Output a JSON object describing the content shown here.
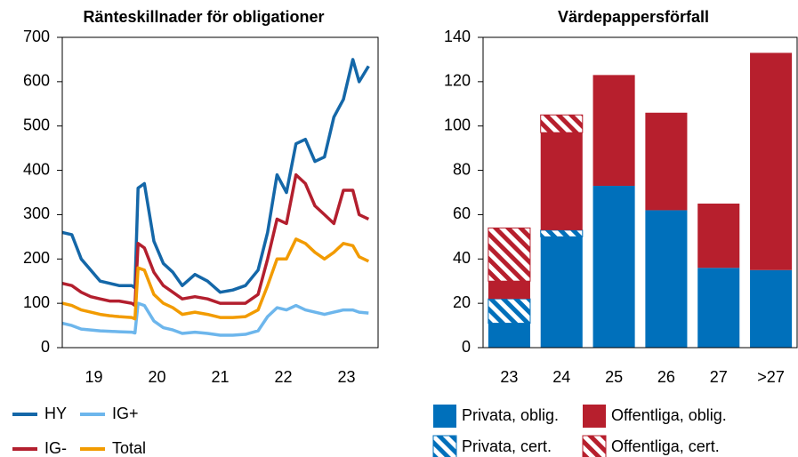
{
  "chart_data": [
    {
      "type": "line",
      "title": "Ränteskillnader för obligationer",
      "x": [
        2019.0,
        2019.15,
        2019.3,
        2019.45,
        2019.6,
        2019.75,
        2019.9,
        2020.1,
        2020.15,
        2020.2,
        2020.3,
        2020.45,
        2020.6,
        2020.75,
        2020.9,
        2021.1,
        2021.3,
        2021.5,
        2021.7,
        2021.9,
        2022.1,
        2022.25,
        2022.4,
        2022.55,
        2022.7,
        2022.85,
        2023.0,
        2023.15,
        2023.3,
        2023.45,
        2023.6,
        2023.7,
        2023.85
      ],
      "xlim": [
        2019,
        2024
      ],
      "xticks": [
        {
          "value": 2019.5,
          "label": "19"
        },
        {
          "value": 2020.5,
          "label": "20"
        },
        {
          "value": 2021.5,
          "label": "21"
        },
        {
          "value": 2022.5,
          "label": "22"
        },
        {
          "value": 2023.5,
          "label": "23"
        }
      ],
      "ylim": [
        0,
        700
      ],
      "yticks": [
        0,
        100,
        200,
        300,
        400,
        500,
        600,
        700
      ],
      "series": [
        {
          "name": "HY",
          "color": "#1467a8",
          "values": [
            260,
            255,
            200,
            175,
            150,
            145,
            140,
            140,
            135,
            360,
            370,
            240,
            190,
            170,
            140,
            165,
            150,
            125,
            130,
            140,
            175,
            260,
            390,
            350,
            460,
            470,
            420,
            430,
            520,
            560,
            650,
            600,
            635
          ]
        },
        {
          "name": "IG-",
          "color": "#b31f2e",
          "values": [
            145,
            140,
            125,
            115,
            110,
            105,
            105,
            100,
            95,
            235,
            225,
            170,
            140,
            125,
            110,
            115,
            110,
            100,
            100,
            100,
            120,
            200,
            290,
            280,
            390,
            370,
            320,
            300,
            280,
            355,
            355,
            300,
            290
          ]
        },
        {
          "name": "IG+",
          "color": "#6db6ec",
          "values": [
            55,
            50,
            42,
            40,
            38,
            37,
            36,
            35,
            33,
            100,
            95,
            60,
            45,
            40,
            32,
            35,
            32,
            28,
            28,
            30,
            38,
            70,
            90,
            85,
            95,
            85,
            80,
            75,
            80,
            85,
            85,
            80,
            78
          ]
        },
        {
          "name": "Total",
          "color": "#f29b00",
          "values": [
            100,
            95,
            85,
            80,
            75,
            72,
            70,
            68,
            65,
            180,
            175,
            120,
            100,
            90,
            75,
            80,
            75,
            68,
            68,
            70,
            85,
            140,
            200,
            200,
            245,
            235,
            215,
            200,
            215,
            235,
            230,
            205,
            195
          ]
        }
      ]
    },
    {
      "type": "stacked_bar",
      "title": "Värdepappersförfall",
      "categories": [
        "23",
        "24",
        "25",
        "26",
        "27",
        ">27"
      ],
      "ylim": [
        0,
        140
      ],
      "yticks": [
        0,
        20,
        40,
        60,
        80,
        100,
        120,
        140
      ],
      "series": [
        {
          "name": "Privata, oblig.",
          "color": "#0070bb",
          "pattern": "solid",
          "values": [
            11,
            50,
            73,
            62,
            36,
            35
          ]
        },
        {
          "name": "Privata, cert.",
          "color": "#0070bb",
          "pattern": "hatch",
          "values": [
            11,
            3,
            0,
            0,
            0,
            0
          ]
        },
        {
          "name": "Offentliga, oblig.",
          "color": "#b71f2d",
          "pattern": "solid",
          "values": [
            8,
            44,
            50,
            44,
            29,
            98
          ]
        },
        {
          "name": "Offentliga, cert.",
          "color": "#b71f2d",
          "pattern": "hatch",
          "values": [
            24,
            8,
            0,
            0,
            0,
            0
          ]
        }
      ]
    }
  ]
}
